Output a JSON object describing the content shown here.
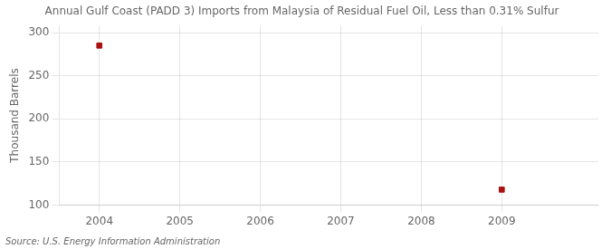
{
  "chart_data": {
    "type": "scatter",
    "title": "Annual Gulf Coast (PADD 3) Imports from Malaysia of Residual Fuel Oil, Less than 0.31% Sulfur",
    "ylabel": "Thousand Barrels",
    "annotations": [
      "Source: U.S. Energy Information Administration"
    ],
    "x": [
      2004,
      2009
    ],
    "values": [
      285,
      118
    ],
    "color": "#aa1111",
    "marker": "square",
    "xlim": [
      2003.5,
      2010.2
    ],
    "xticks": [
      2004,
      2005,
      2006,
      2007,
      2008,
      2009
    ],
    "ylim": [
      100,
      308
    ],
    "yticks": [
      100,
      150,
      200,
      250,
      300
    ],
    "grid": true
  }
}
